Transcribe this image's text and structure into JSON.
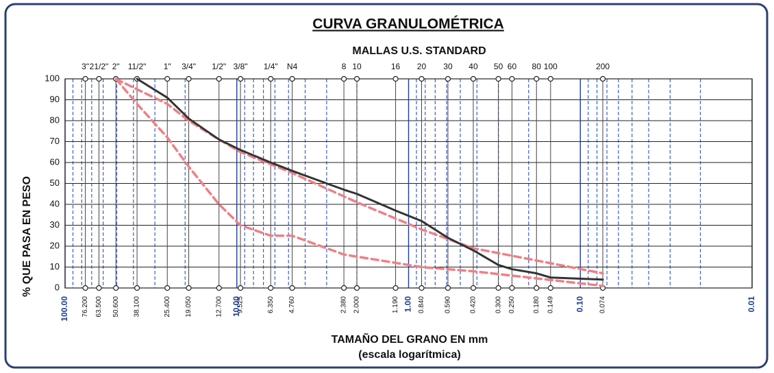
{
  "chart_data": {
    "type": "line",
    "title": "CURVA GRANULOMÉTRICA",
    "subtitle": "MALLAS U.S. STANDARD",
    "ylabel": "% QUE PASA EN PESO",
    "xlabel": "TAMAÑO DEL GRANO EN mm",
    "xlabel2": "(escala logarítmica)",
    "xscale": "log",
    "xlim": [
      100,
      0.01
    ],
    "ylim": [
      0,
      100
    ],
    "yticks": [
      0,
      10,
      20,
      30,
      40,
      50,
      60,
      70,
      80,
      90,
      100
    ],
    "xticks": [
      {
        "value": 100,
        "label": "100.00"
      },
      {
        "value": 10,
        "label": "10.00"
      },
      {
        "value": 1,
        "label": "1.00"
      },
      {
        "value": 0.1,
        "label": "0.10"
      },
      {
        "value": 0.01,
        "label": "0.01"
      }
    ],
    "xminorticks": [
      90,
      80,
      70,
      60,
      50,
      40,
      30,
      20,
      9,
      8,
      7,
      6,
      5,
      4,
      3,
      2,
      0.9,
      0.8,
      0.7,
      0.6,
      0.5,
      0.4,
      0.3,
      0.2,
      0.09,
      0.08,
      0.07,
      0.06,
      0.05,
      0.04,
      0.03,
      0.02
    ],
    "grid": true,
    "sieves": {
      "names": [
        "3\"",
        "21/2\"",
        "2\"",
        "11/2\"",
        "1\"",
        "3/4\"",
        "1/2\"",
        "3/8\"",
        "1/4\"",
        "N4",
        "8",
        "10",
        "16",
        "20",
        "30",
        "40",
        "50",
        "60",
        "80",
        "100",
        "200"
      ],
      "openings": [
        {
          "value": 76.2,
          "label": "76.200"
        },
        {
          "value": 63.5,
          "label": "63.500"
        },
        {
          "value": 50.6,
          "label": "50.600"
        },
        {
          "value": 38.1,
          "label": "38.100"
        },
        {
          "value": 25.4,
          "label": "25.400"
        },
        {
          "value": 19.05,
          "label": "19.050"
        },
        {
          "value": 12.7,
          "label": "12.700"
        },
        {
          "value": 9.525,
          "label": "9.525"
        },
        {
          "value": 6.35,
          "label": "6.350"
        },
        {
          "value": 4.76,
          "label": "4.760"
        },
        {
          "value": 2.38,
          "label": "2.380"
        },
        {
          "value": 2.0,
          "label": "2.000"
        },
        {
          "value": 1.19,
          "label": "1.190"
        },
        {
          "value": 0.84,
          "label": "0.840"
        },
        {
          "value": 0.59,
          "label": "0.590"
        },
        {
          "value": 0.42,
          "label": "0.420"
        },
        {
          "value": 0.3,
          "label": "0.300"
        },
        {
          "value": 0.25,
          "label": "0.250"
        },
        {
          "value": 0.18,
          "label": "0.180"
        },
        {
          "value": 0.149,
          "label": "0.149"
        },
        {
          "value": 0.074,
          "label": "0.074"
        }
      ]
    },
    "series": [
      {
        "color": "#333333",
        "style": "solid",
        "x": [
          38.1,
          25.4,
          19.05,
          12.7,
          9.525,
          6.35,
          4.76,
          2.38,
          2.0,
          1.19,
          0.84,
          0.59,
          0.42,
          0.3,
          0.25,
          0.18,
          0.149,
          0.074
        ],
        "values": [
          100,
          91,
          81,
          71,
          66,
          60,
          56,
          47,
          45,
          37,
          32,
          24,
          18,
          11,
          9,
          7,
          5,
          4
        ]
      },
      {
        "color": "#ef7f85",
        "style": "dashed",
        "x": [
          50.6,
          38.1,
          25.4,
          19.05,
          12.7,
          9.525,
          4.76,
          2.0,
          0.84,
          0.42,
          0.074
        ],
        "values": [
          100,
          95,
          88,
          80,
          71,
          65,
          55,
          41,
          28,
          19,
          7
        ]
      },
      {
        "color": "#ef7f85",
        "style": "dashed",
        "x": [
          50.6,
          38.1,
          25.4,
          19.05,
          12.7,
          9.525,
          6.35,
          4.76,
          2.38,
          2.0,
          0.84,
          0.42,
          0.074
        ],
        "values": [
          100,
          88,
          72,
          58,
          40,
          30,
          25,
          25,
          16,
          15,
          10,
          8,
          1
        ]
      }
    ]
  }
}
